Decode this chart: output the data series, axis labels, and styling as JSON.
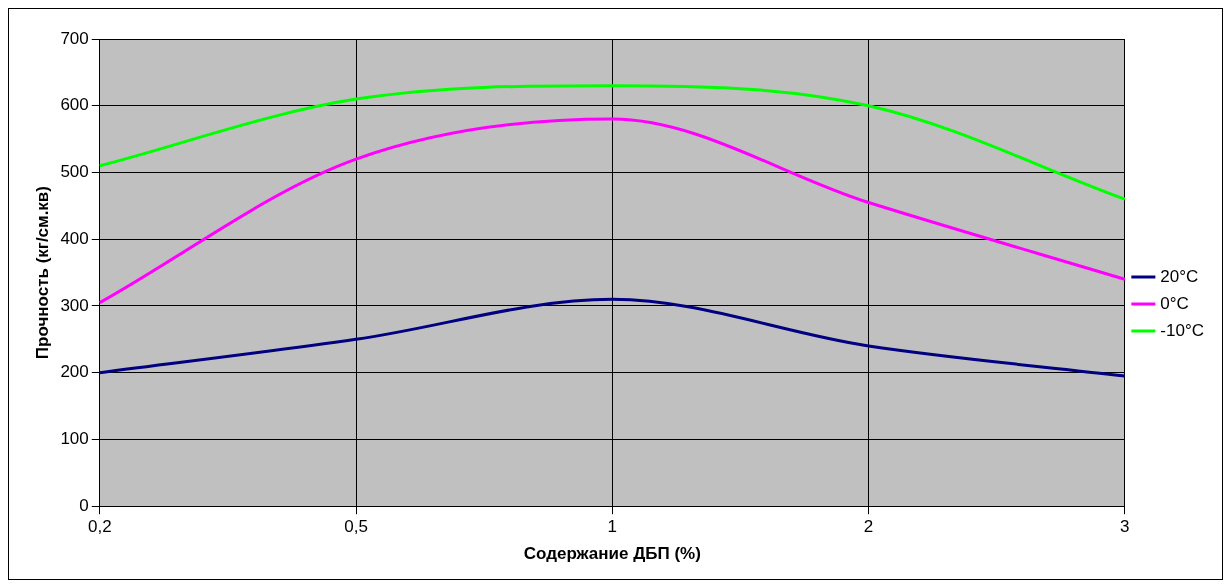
{
  "chart_data": {
    "type": "line",
    "xlabel": "Содержание ДБП (%)",
    "ylabel": "Прочность (кг/см.кв)",
    "categories": [
      "0,2",
      "0,5",
      "1",
      "2",
      "3"
    ],
    "series": [
      {
        "name": "20°C",
        "color": "#000080",
        "values": [
          200,
          250,
          310,
          240,
          195
        ]
      },
      {
        "name": "0°C",
        "color": "#ff00ff",
        "values": [
          305,
          520,
          580,
          455,
          340
        ]
      },
      {
        "name": "-10°C",
        "color": "#00ff00",
        "values": [
          510,
          610,
          630,
          600,
          460
        ]
      }
    ],
    "ylim": [
      0,
      700
    ],
    "yticks": [
      0,
      100,
      200,
      300,
      400,
      500,
      600,
      700
    ],
    "grid": true,
    "legend": "right",
    "marker": "none",
    "line_style": "solid"
  }
}
